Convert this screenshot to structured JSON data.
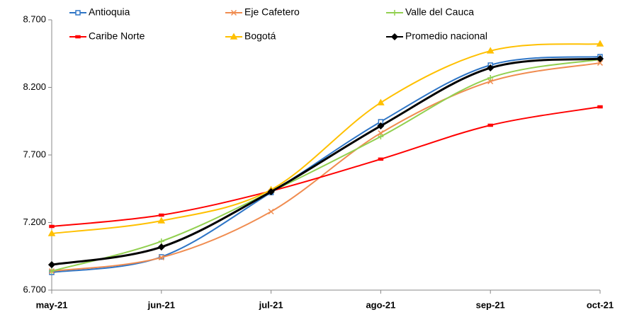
{
  "chart_data": {
    "type": "line",
    "categories": [
      "may-21",
      "jun-21",
      "jul-21",
      "ago-21",
      "sep-21",
      "oct-21"
    ],
    "series": [
      {
        "name": "Antioquia",
        "color": "#2e75c6",
        "marker": "square",
        "values": [
          6831,
          6946,
          7422,
          7946,
          8365,
          8428
        ]
      },
      {
        "name": "Eje Cafetero",
        "color": "#f08c50",
        "marker": "x",
        "values": [
          6841,
          6941,
          7281,
          7862,
          8244,
          8381
        ]
      },
      {
        "name": "Valle del Cauca",
        "color": "#92d050",
        "marker": "plus",
        "values": [
          6841,
          7061,
          7428,
          7836,
          8271,
          8407
        ]
      },
      {
        "name": "Caribe Norte",
        "color": "#ff0000",
        "marker": "dash",
        "values": [
          7171,
          7255,
          7433,
          7669,
          7920,
          8056
        ]
      },
      {
        "name": "Bogotá",
        "color": "#ffc000",
        "marker": "triangle",
        "values": [
          7119,
          7213,
          7443,
          8087,
          8470,
          8522
        ]
      },
      {
        "name": "Promedio nacional",
        "color": "#000000",
        "marker": "diamond",
        "values": [
          6888,
          7019,
          7428,
          7915,
          8344,
          8412
        ]
      }
    ],
    "ylim": [
      6700,
      8700
    ],
    "yticks": [
      {
        "value": 6700,
        "label": "6.700"
      },
      {
        "value": 7200,
        "label": "7.200"
      },
      {
        "value": 7700,
        "label": "7.700"
      },
      {
        "value": 8200,
        "label": "8.200"
      },
      {
        "value": 8700,
        "label": "8.700"
      }
    ],
    "smooth": true,
    "grid": false
  }
}
